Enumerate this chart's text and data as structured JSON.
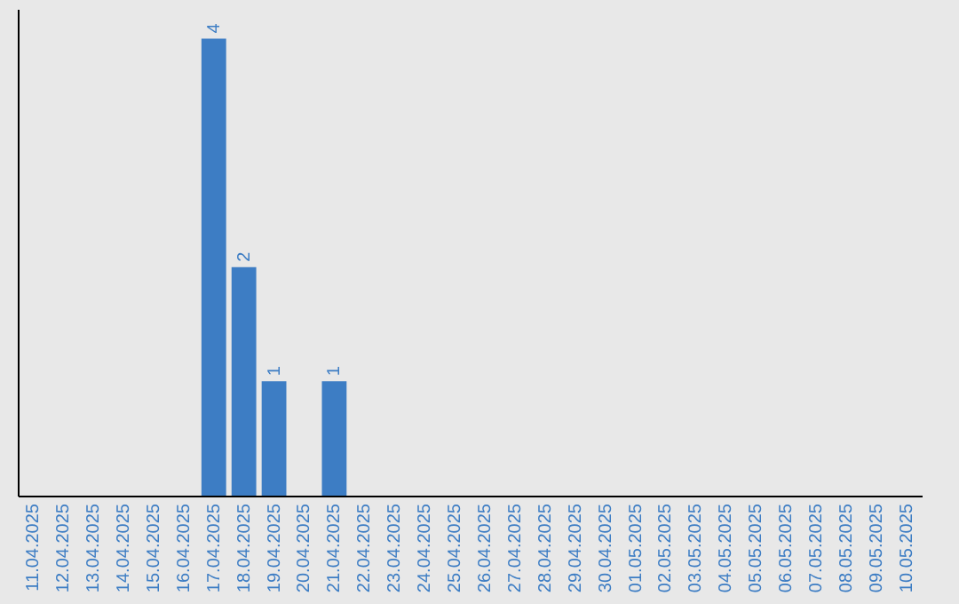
{
  "chart_data": {
    "type": "bar",
    "categories": [
      "11.04.2025",
      "12.04.2025",
      "13.04.2025",
      "14.04.2025",
      "15.04.2025",
      "16.04.2025",
      "17.04.2025",
      "18.04.2025",
      "19.04.2025",
      "20.04.2025",
      "21.04.2025",
      "22.04.2025",
      "23.04.2025",
      "24.04.2025",
      "25.04.2025",
      "26.04.2025",
      "27.04.2025",
      "28.04.2025",
      "29.04.2025",
      "30.04.2025",
      "01.05.2025",
      "02.05.2025",
      "03.05.2025",
      "04.05.2025",
      "05.05.2025",
      "06.05.2025",
      "07.05.2025",
      "08.05.2025",
      "09.05.2025",
      "10.05.2025"
    ],
    "values": [
      0,
      0,
      0,
      0,
      0,
      0,
      4,
      2,
      1,
      0,
      1,
      0,
      0,
      0,
      0,
      0,
      0,
      0,
      0,
      0,
      0,
      0,
      0,
      0,
      0,
      0,
      0,
      0,
      0,
      0
    ],
    "value_labels": [
      null,
      null,
      null,
      null,
      null,
      null,
      "4",
      "2",
      "1",
      null,
      "1",
      null,
      null,
      null,
      null,
      null,
      null,
      null,
      null,
      null,
      null,
      null,
      null,
      null,
      null,
      null,
      null,
      null,
      null,
      null
    ],
    "color": "#3d7dc4",
    "grid": false,
    "tick_labels": "x"
  }
}
